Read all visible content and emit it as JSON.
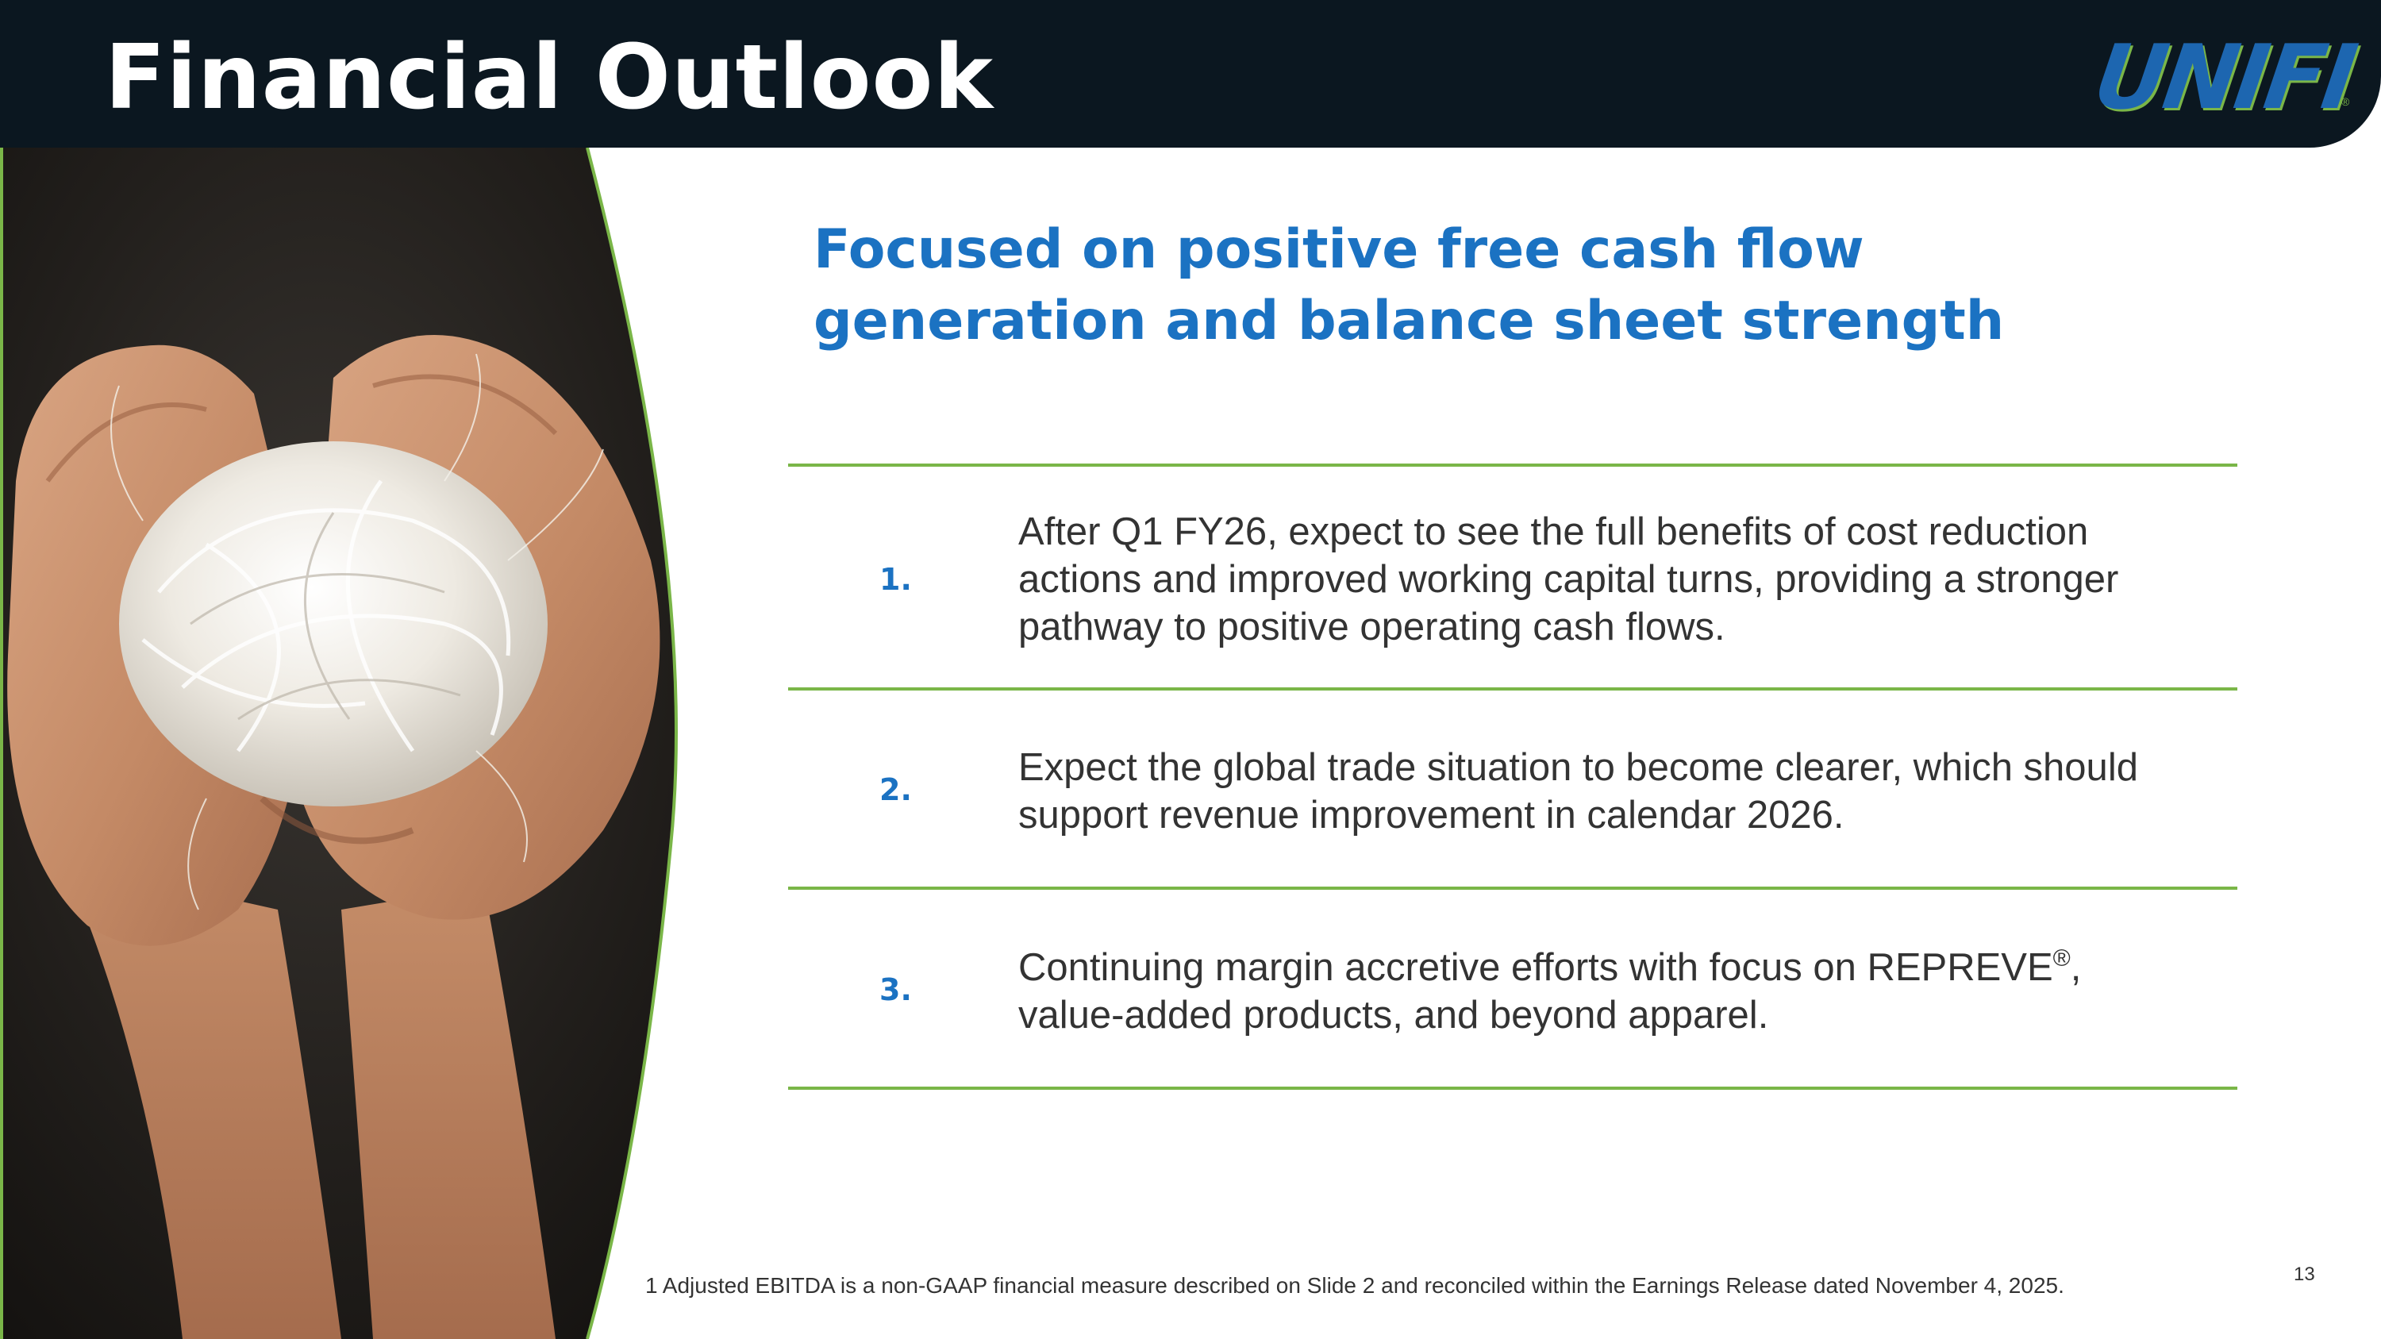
{
  "header": {
    "title": "Financial Outlook",
    "logo_text": "UNIFI",
    "logo_mark": "®"
  },
  "colors": {
    "header_bg": "#0b1720",
    "accent_blue": "#1b72c2",
    "accent_green": "#7ab648",
    "body_text": "#333333"
  },
  "subtitle": {
    "line1": "Focused on positive free cash flow",
    "line2": "generation and balance sheet strength"
  },
  "items": [
    {
      "number": "1.",
      "lines": [
        "After Q1 FY26, expect to see the full benefits of cost reduction",
        "actions and improved working capital turns, providing a stronger",
        "pathway to positive operating cash flows."
      ]
    },
    {
      "number": "2.",
      "lines": [
        "Expect the global trade situation to become clearer, which should",
        "support revenue improvement in calendar 2026."
      ]
    },
    {
      "number": "3.",
      "line1_before": "Continuing margin accretive efforts with focus on REPREVE",
      "line1_reg": "®",
      "line1_after": ",",
      "line2": "value-added products, and beyond apparel."
    }
  ],
  "footnote": "1  Adjusted EBITDA is a non-GAAP financial measure described on Slide 2 and reconciled within the Earnings Release dated November 4, 2025.",
  "page_number": "13",
  "image": {
    "icon": "hands-holding-yarn-photo"
  }
}
